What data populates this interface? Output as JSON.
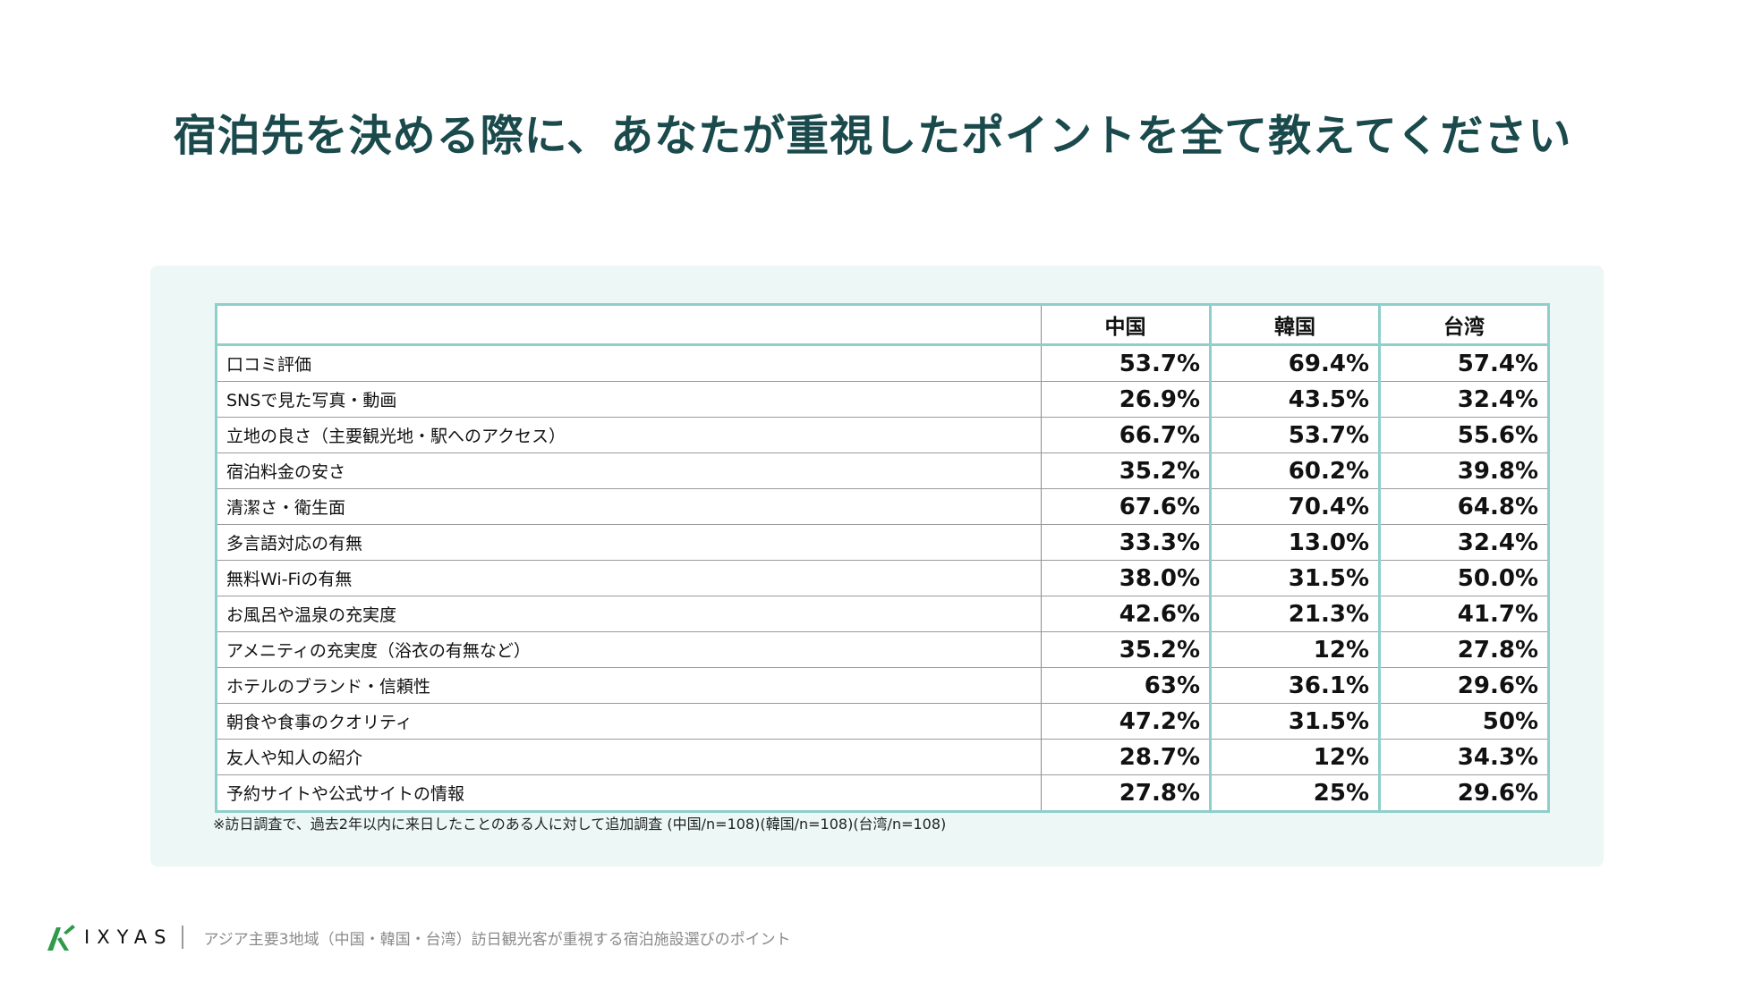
{
  "page": {
    "title": "宿泊先を決める際に、あなたが重視したポイントを全て教えてください"
  },
  "table": {
    "headers": [
      "",
      "中国",
      "韓国",
      "台湾"
    ],
    "rows": [
      {
        "label": "口コミ評価",
        "values": [
          "53.7%",
          "69.4%",
          "57.4%"
        ]
      },
      {
        "label": "SNSで見た写真・動画",
        "values": [
          "26.9%",
          "43.5%",
          "32.4%"
        ]
      },
      {
        "label": "立地の良さ（主要観光地・駅へのアクセス）",
        "values": [
          "66.7%",
          "53.7%",
          "55.6%"
        ]
      },
      {
        "label": "宿泊料金の安さ",
        "values": [
          "35.2%",
          "60.2%",
          "39.8%"
        ]
      },
      {
        "label": "清潔さ・衛生面",
        "values": [
          "67.6%",
          "70.4%",
          "64.8%"
        ]
      },
      {
        "label": "多言語対応の有無",
        "values": [
          "33.3%",
          "13.0%",
          "32.4%"
        ]
      },
      {
        "label": "無料Wi-Fiの有無",
        "values": [
          "38.0%",
          "31.5%",
          "50.0%"
        ]
      },
      {
        "label": "お風呂や温泉の充実度",
        "values": [
          "42.6%",
          "21.3%",
          "41.7%"
        ]
      },
      {
        "label": "アメニティの充実度（浴衣の有無など）",
        "values": [
          "35.2%",
          "12%",
          "27.8%"
        ]
      },
      {
        "label": "ホテルのブランド・信頼性",
        "values": [
          "63%",
          "36.1%",
          "29.6%"
        ]
      },
      {
        "label": "朝食や食事のクオリティ",
        "values": [
          "47.2%",
          "31.5%",
          "50%"
        ]
      },
      {
        "label": "友人や知人の紹介",
        "values": [
          "28.7%",
          "12%",
          "34.3%"
        ]
      },
      {
        "label": "予約サイトや公式サイトの情報",
        "values": [
          "27.8%",
          "25%",
          "29.6%"
        ]
      }
    ],
    "footnote": "※訪日調査で、過去2年以内に来日したことのある人に対して追加調査 (中国/n=108)(韓国/n=108)(台湾/n=108)"
  },
  "footer": {
    "logo_icon": "ixyas-logo-icon",
    "logo_text": "IXYAS",
    "caption": "アジア主要3地域（中国・韓国・台湾）訪日観光客が重視する宿泊施設選びのポイント"
  },
  "colors": {
    "title": "#1b4a4c",
    "panel": "#ecf7f6",
    "table_border": "#8fcfcb",
    "logo_green": "#2e9a4a"
  }
}
